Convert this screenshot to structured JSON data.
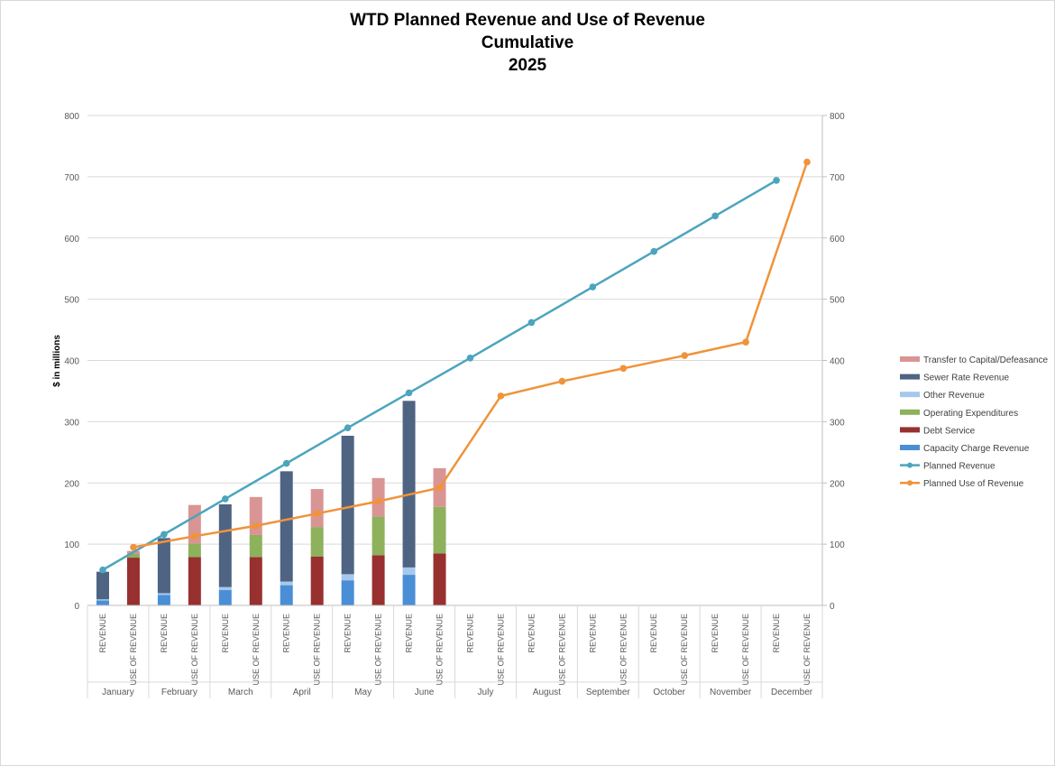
{
  "chart_data": {
    "type": "bar",
    "title": "WTD Planned Revenue and Use of Revenue",
    "subtitle": "Cumulative",
    "year": "2025",
    "ylabel": "$ in millions",
    "ylim": [
      0,
      800
    ],
    "y2lim": [
      0,
      800
    ],
    "yticks": [
      0,
      100,
      200,
      300,
      400,
      500,
      600,
      700,
      800
    ],
    "grid": true,
    "legend_position": "right",
    "months": [
      "January",
      "February",
      "March",
      "April",
      "May",
      "June",
      "July",
      "August",
      "September",
      "October",
      "November",
      "December"
    ],
    "categories": [
      "REVENUE",
      "USE OF REVENUE"
    ],
    "stacked_series": [
      {
        "name": "Transfer to Capital/Defeasance",
        "color": "#d99594",
        "group": "USE OF REVENUE",
        "values": [
          5,
          63,
          62,
          62,
          63,
          63,
          null,
          null,
          null,
          null,
          null,
          null
        ]
      },
      {
        "name": "Sewer Rate Revenue",
        "color": "#4f6483",
        "group": "REVENUE",
        "values": [
          45,
          90,
          135,
          180,
          226,
          272,
          null,
          null,
          null,
          null,
          null,
          null
        ]
      },
      {
        "name": "Other Revenue",
        "color": "#a6c8ec",
        "group": "REVENUE",
        "values": [
          2,
          3,
          5,
          6,
          10,
          12,
          null,
          null,
          null,
          null,
          null,
          null
        ]
      },
      {
        "name": "Operating Expenditures",
        "color": "#8eb15c",
        "group": "USE OF REVENUE",
        "values": [
          6,
          22,
          36,
          48,
          63,
          76,
          null,
          null,
          null,
          null,
          null,
          null
        ]
      },
      {
        "name": "Debt Service",
        "color": "#98302f",
        "group": "USE OF REVENUE",
        "values": [
          78,
          79,
          79,
          80,
          82,
          85,
          null,
          null,
          null,
          null,
          null,
          null
        ]
      },
      {
        "name": "Capacity Charge Revenue",
        "color": "#4a8ed6",
        "group": "REVENUE",
        "values": [
          8,
          17,
          25,
          33,
          41,
          50,
          null,
          null,
          null,
          null,
          null,
          null
        ]
      }
    ],
    "line_series": [
      {
        "name": "Planned Revenue",
        "color": "#4ba5bd",
        "values": [
          58,
          116,
          174,
          232,
          290,
          347,
          404,
          462,
          520,
          578,
          636,
          694
        ]
      },
      {
        "name": "Planned Use of Revenue",
        "color": "#f0933a",
        "values": [
          95,
          113,
          130,
          150,
          170,
          192,
          342,
          366,
          387,
          408,
          430,
          724
        ]
      }
    ],
    "legend_order": [
      "Transfer to Capital/Defeasance",
      "Sewer Rate Revenue",
      "Other Revenue",
      "Operating Expenditures",
      "Debt Service",
      "Capacity Charge Revenue",
      "Planned Revenue",
      "Planned Use of Revenue"
    ]
  }
}
